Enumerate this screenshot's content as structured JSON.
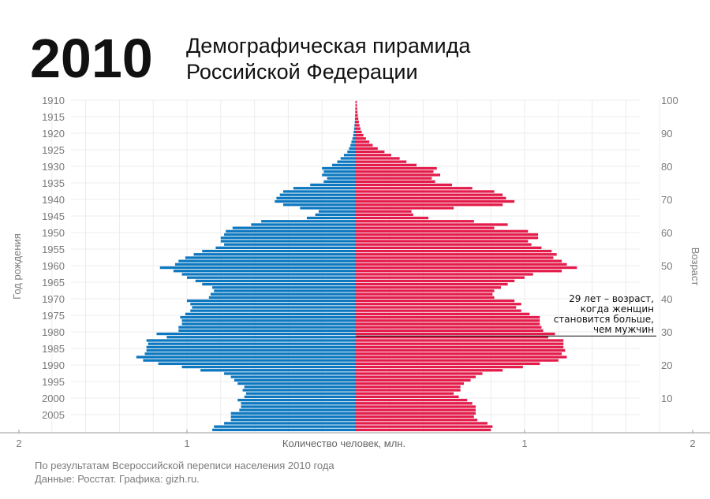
{
  "header": {
    "year": "2010",
    "title_line1": "Демографическая пирамида",
    "title_line2": "Российской Федерации"
  },
  "footer": {
    "line1": "По результатам Всероссийской переписи населения 2010 года",
    "line2": "Данные: Росстат. Графика: gizh.ru."
  },
  "chart_data": {
    "type": "bar",
    "orientation": "horizontal-pyramid",
    "y_left_label": "Год рождения",
    "y_right_label": "Возраст",
    "x_label": "Количество человек, млн.",
    "x_ticks": [
      {
        "value": -2,
        "label": "2"
      },
      {
        "value": -1,
        "label": "1"
      },
      {
        "value": 1,
        "label": "1"
      },
      {
        "value": 2,
        "label": "2"
      }
    ],
    "year_ticks": [
      1910,
      1915,
      1920,
      1925,
      1930,
      1935,
      1940,
      1945,
      1950,
      1955,
      1960,
      1965,
      1970,
      1975,
      1980,
      1985,
      1990,
      1995,
      2000,
      2005
    ],
    "age_ticks": [
      100,
      90,
      80,
      70,
      60,
      50,
      40,
      30,
      20,
      10
    ],
    "xlim": [
      -2,
      2
    ],
    "grid": true,
    "colors": {
      "men": "#0d78bf",
      "women": "#e31c4b"
    },
    "annotation": {
      "age": 29,
      "lines": [
        "29 лет – возраст,",
        "когда женщин",
        "становится больше,",
        "чем мужчин"
      ]
    },
    "birth_years": [
      1910,
      1911,
      1912,
      1913,
      1914,
      1915,
      1916,
      1917,
      1918,
      1919,
      1920,
      1921,
      1922,
      1923,
      1924,
      1925,
      1926,
      1927,
      1928,
      1929,
      1930,
      1931,
      1932,
      1933,
      1934,
      1935,
      1936,
      1937,
      1938,
      1939,
      1940,
      1941,
      1942,
      1943,
      1944,
      1945,
      1946,
      1947,
      1948,
      1949,
      1950,
      1951,
      1952,
      1953,
      1954,
      1955,
      1956,
      1957,
      1958,
      1959,
      1960,
      1961,
      1962,
      1963,
      1964,
      1965,
      1966,
      1967,
      1968,
      1969,
      1970,
      1971,
      1972,
      1973,
      1974,
      1975,
      1976,
      1977,
      1978,
      1979,
      1980,
      1981,
      1982,
      1983,
      1984,
      1985,
      1986,
      1987,
      1988,
      1989,
      1990,
      1991,
      1992,
      1993,
      1994,
      1995,
      1996,
      1997,
      1998,
      1999,
      2000,
      2001,
      2002,
      2003,
      2004,
      2005,
      2006,
      2007,
      2008,
      2009
    ],
    "series": [
      {
        "name": "men",
        "values": [
          0.002,
          0.002,
          0.003,
          0.003,
          0.004,
          0.005,
          0.006,
          0.008,
          0.01,
          0.013,
          0.015,
          0.02,
          0.026,
          0.032,
          0.04,
          0.05,
          0.07,
          0.09,
          0.11,
          0.14,
          0.2,
          0.19,
          0.2,
          0.17,
          0.19,
          0.27,
          0.37,
          0.43,
          0.45,
          0.47,
          0.48,
          0.43,
          0.33,
          0.22,
          0.24,
          0.29,
          0.56,
          0.62,
          0.73,
          0.77,
          0.78,
          0.8,
          0.8,
          0.78,
          0.83,
          0.91,
          0.96,
          1.01,
          1.05,
          1.07,
          1.16,
          1.08,
          1.03,
          1.0,
          0.95,
          0.91,
          0.85,
          0.84,
          0.86,
          0.87,
          1.0,
          0.98,
          0.97,
          0.98,
          1.01,
          1.04,
          1.03,
          1.03,
          1.05,
          1.05,
          1.18,
          1.12,
          1.24,
          1.23,
          1.24,
          1.24,
          1.25,
          1.3,
          1.26,
          1.17,
          1.03,
          0.92,
          0.78,
          0.74,
          0.72,
          0.7,
          0.66,
          0.67,
          0.65,
          0.66,
          0.7,
          0.68,
          0.68,
          0.69,
          0.74,
          0.74,
          0.74,
          0.78,
          0.84,
          0.85
        ]
      },
      {
        "name": "women",
        "values": [
          0.006,
          0.007,
          0.008,
          0.01,
          0.012,
          0.015,
          0.018,
          0.022,
          0.028,
          0.035,
          0.045,
          0.06,
          0.08,
          0.1,
          0.13,
          0.17,
          0.21,
          0.26,
          0.3,
          0.36,
          0.48,
          0.46,
          0.5,
          0.45,
          0.47,
          0.57,
          0.69,
          0.82,
          0.87,
          0.89,
          0.94,
          0.87,
          0.58,
          0.33,
          0.34,
          0.43,
          0.7,
          0.9,
          0.82,
          1.02,
          1.08,
          1.08,
          1.02,
          1.04,
          1.1,
          1.16,
          1.19,
          1.17,
          1.22,
          1.25,
          1.31,
          1.22,
          1.05,
          1.0,
          0.94,
          0.9,
          0.86,
          0.82,
          0.81,
          0.82,
          0.94,
          0.98,
          0.95,
          0.98,
          1.03,
          1.09,
          1.09,
          1.09,
          1.1,
          1.11,
          1.18,
          1.14,
          1.23,
          1.23,
          1.23,
          1.24,
          1.22,
          1.25,
          1.2,
          1.09,
          0.99,
          0.87,
          0.75,
          0.71,
          0.68,
          0.64,
          0.62,
          0.62,
          0.58,
          0.61,
          0.66,
          0.69,
          0.71,
          0.71,
          0.71,
          0.7,
          0.72,
          0.78,
          0.81,
          0.8
        ]
      }
    ]
  }
}
